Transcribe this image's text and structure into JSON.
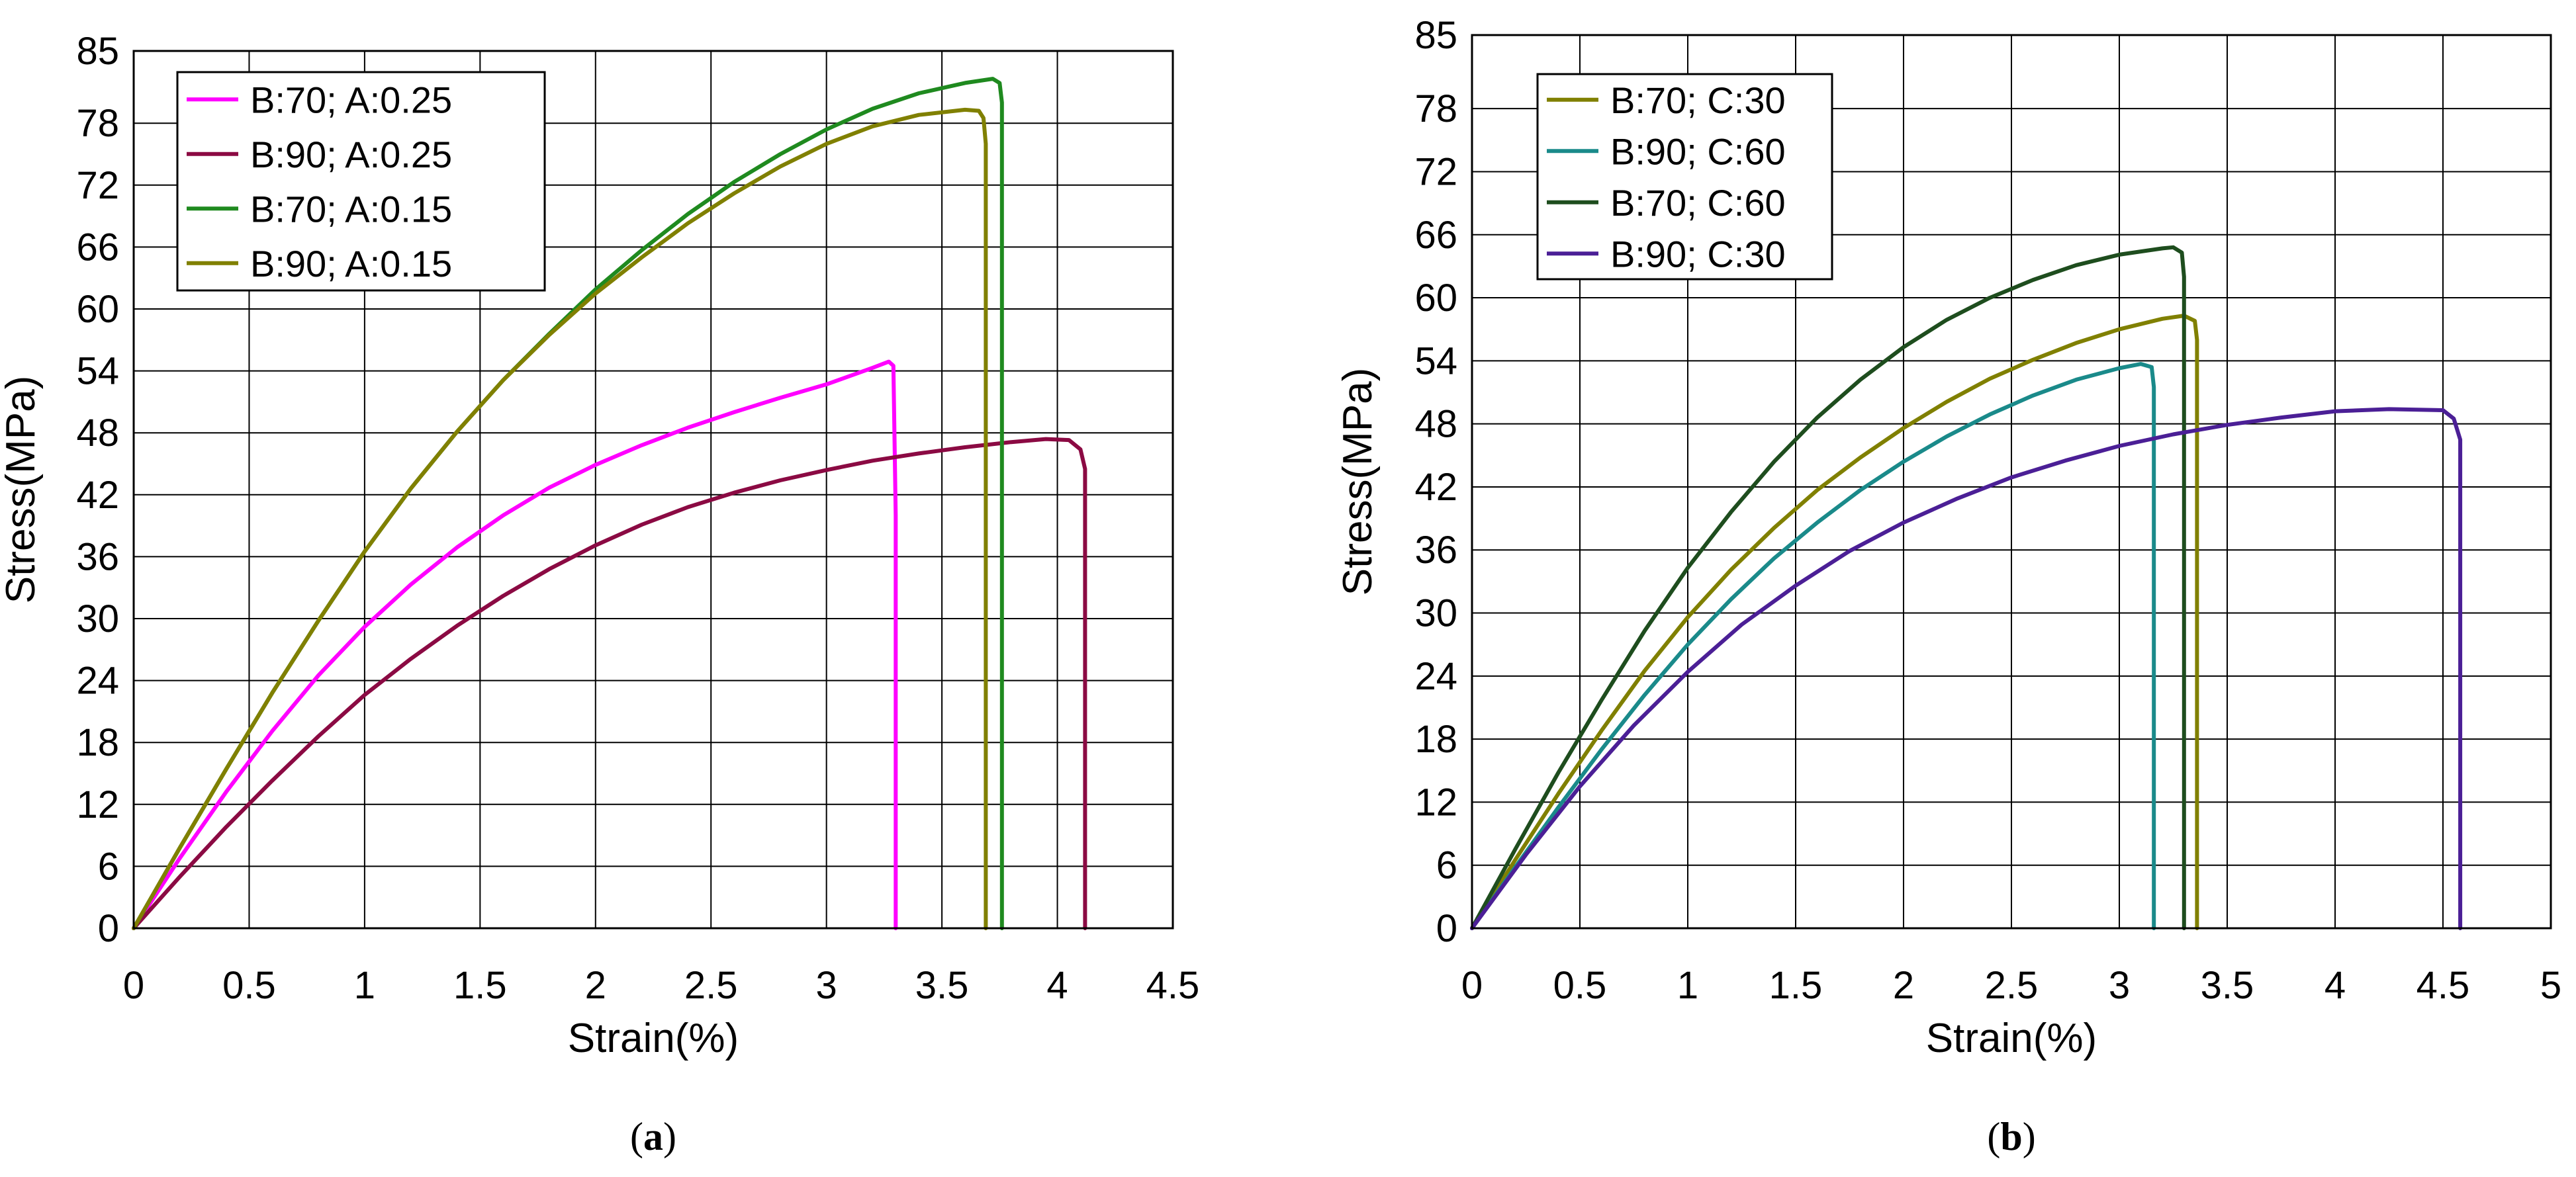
{
  "chart_data": [
    {
      "type": "line",
      "panel_label": "(a)",
      "panel_label_letter": "a",
      "xlabel": "Strain(%)",
      "ylabel": "Stress(MPa)",
      "xlim": [
        0,
        4.5
      ],
      "ylim": [
        0,
        85
      ],
      "xticks": [
        0,
        0.5,
        1,
        1.5,
        2,
        2.5,
        3,
        3.5,
        4,
        4.5
      ],
      "xtick_labels": [
        "0",
        "0.5",
        "1",
        "1.5",
        "2",
        "2.5",
        "3",
        "3.5",
        "4",
        "4.5"
      ],
      "yticks": [
        0,
        6,
        12,
        18,
        24,
        30,
        36,
        42,
        48,
        54,
        60,
        66,
        72,
        78,
        85
      ],
      "ytick_labels": [
        "0",
        "6",
        "12",
        "18",
        "24",
        "30",
        "36",
        "42",
        "48",
        "54",
        "60",
        "66",
        "72",
        "78",
        "85"
      ],
      "grid": true,
      "legend_position": "top-left",
      "series": [
        {
          "name": "B:70; A:0.25",
          "color": "#ff00ff",
          "x": [
            0,
            0.2,
            0.4,
            0.6,
            0.8,
            1.0,
            1.2,
            1.4,
            1.6,
            1.8,
            2.0,
            2.2,
            2.4,
            2.6,
            2.8,
            3.0,
            3.2,
            3.27,
            3.29,
            3.3,
            3.3
          ],
          "y": [
            0,
            6.8,
            13.2,
            19.1,
            24.5,
            29.2,
            33.3,
            36.9,
            40.0,
            42.7,
            44.9,
            46.8,
            48.5,
            50.0,
            51.4,
            52.7,
            54.3,
            54.9,
            54.5,
            40.0,
            0
          ]
        },
        {
          "name": "B:90; A:0.25",
          "color": "#8b0a43",
          "x": [
            0,
            0.2,
            0.4,
            0.6,
            0.8,
            1.0,
            1.2,
            1.4,
            1.6,
            1.8,
            2.0,
            2.2,
            2.4,
            2.6,
            2.8,
            3.0,
            3.2,
            3.4,
            3.6,
            3.8,
            3.95,
            4.05,
            4.1,
            4.12,
            4.12
          ],
          "y": [
            0,
            5.0,
            9.8,
            14.3,
            18.6,
            22.6,
            26.1,
            29.3,
            32.2,
            34.8,
            37.1,
            39.1,
            40.8,
            42.2,
            43.4,
            44.4,
            45.3,
            46.0,
            46.6,
            47.1,
            47.4,
            47.3,
            46.4,
            44.5,
            0
          ]
        },
        {
          "name": "B:70; A:0.15",
          "color": "#1f8a1f",
          "x": [
            0,
            0.2,
            0.4,
            0.6,
            0.8,
            1.0,
            1.2,
            1.4,
            1.6,
            1.8,
            2.0,
            2.2,
            2.4,
            2.6,
            2.8,
            3.0,
            3.2,
            3.4,
            3.6,
            3.72,
            3.75,
            3.76,
            3.76
          ],
          "y": [
            0,
            7.8,
            15.4,
            22.8,
            29.8,
            36.5,
            42.6,
            48.1,
            53.1,
            57.6,
            61.9,
            65.7,
            69.2,
            72.3,
            75.0,
            77.4,
            79.4,
            80.9,
            81.9,
            82.3,
            81.9,
            80.0,
            0
          ]
        },
        {
          "name": "B:90; A:0.15",
          "color": "#808000",
          "x": [
            0,
            0.2,
            0.4,
            0.6,
            0.8,
            1.0,
            1.2,
            1.4,
            1.6,
            1.8,
            2.0,
            2.2,
            2.4,
            2.6,
            2.8,
            3.0,
            3.2,
            3.4,
            3.6,
            3.66,
            3.68,
            3.69,
            3.69
          ],
          "y": [
            0,
            7.8,
            15.4,
            22.8,
            29.8,
            36.5,
            42.6,
            48.1,
            53.1,
            57.5,
            61.5,
            65.0,
            68.3,
            71.2,
            73.8,
            76.0,
            77.7,
            78.8,
            79.3,
            79.2,
            78.5,
            76.0,
            0
          ]
        }
      ]
    },
    {
      "type": "line",
      "panel_label": "(b)",
      "panel_label_letter": "b",
      "xlabel": "Strain(%)",
      "ylabel": "Stress(MPa)",
      "xlim": [
        0,
        5
      ],
      "ylim": [
        0,
        85
      ],
      "xticks": [
        0,
        0.5,
        1,
        1.5,
        2,
        2.5,
        3,
        3.5,
        4,
        4.5,
        5
      ],
      "xtick_labels": [
        "0",
        "0.5",
        "1",
        "1.5",
        "2",
        "2.5",
        "3",
        "3.5",
        "4",
        "4.5",
        "5"
      ],
      "yticks": [
        0,
        6,
        12,
        18,
        24,
        30,
        36,
        42,
        48,
        54,
        60,
        66,
        72,
        78,
        85
      ],
      "ytick_labels": [
        "0",
        "6",
        "12",
        "18",
        "24",
        "30",
        "36",
        "42",
        "48",
        "54",
        "60",
        "66",
        "72",
        "78",
        "85"
      ],
      "grid": true,
      "legend_position": "top-left",
      "series": [
        {
          "name": "B:70; C:30",
          "color": "#808000",
          "x": [
            0,
            0.2,
            0.4,
            0.6,
            0.8,
            1.0,
            1.2,
            1.4,
            1.6,
            1.8,
            2.0,
            2.2,
            2.4,
            2.6,
            2.8,
            3.0,
            3.2,
            3.3,
            3.35,
            3.36,
            3.36
          ],
          "y": [
            0,
            6.5,
            12.8,
            18.8,
            24.5,
            29.6,
            34.1,
            38.1,
            41.7,
            44.8,
            47.6,
            50.1,
            52.3,
            54.1,
            55.7,
            57.0,
            58.0,
            58.3,
            57.8,
            56.0,
            0
          ]
        },
        {
          "name": "B:90; C:60",
          "color": "#1a8a8a",
          "x": [
            0,
            0.2,
            0.4,
            0.6,
            0.8,
            1.0,
            1.2,
            1.4,
            1.6,
            1.8,
            2.0,
            2.2,
            2.4,
            2.6,
            2.8,
            3.0,
            3.1,
            3.15,
            3.16,
            3.16
          ],
          "y": [
            0,
            5.8,
            11.5,
            17.0,
            22.2,
            27.0,
            31.3,
            35.2,
            38.6,
            41.7,
            44.4,
            46.8,
            48.9,
            50.7,
            52.2,
            53.3,
            53.7,
            53.4,
            51.5,
            0
          ]
        },
        {
          "name": "B:70; C:60",
          "color": "#1e4d1e",
          "x": [
            0,
            0.2,
            0.4,
            0.6,
            0.8,
            1.0,
            1.2,
            1.4,
            1.6,
            1.8,
            2.0,
            2.2,
            2.4,
            2.6,
            2.8,
            3.0,
            3.2,
            3.25,
            3.29,
            3.3,
            3.3
          ],
          "y": [
            0,
            7.5,
            14.8,
            21.7,
            28.3,
            34.3,
            39.6,
            44.4,
            48.6,
            52.2,
            55.3,
            57.9,
            60.0,
            61.7,
            63.1,
            64.1,
            64.7,
            64.8,
            64.3,
            62.0,
            0
          ]
        },
        {
          "name": "B:90; C:30",
          "color": "#4b1f96",
          "x": [
            0,
            0.25,
            0.5,
            0.75,
            1.0,
            1.25,
            1.5,
            1.75,
            2.0,
            2.25,
            2.5,
            2.75,
            3.0,
            3.25,
            3.5,
            3.75,
            4.0,
            4.25,
            4.5,
            4.55,
            4.58,
            4.58
          ],
          "y": [
            0,
            7.0,
            13.5,
            19.3,
            24.4,
            28.9,
            32.6,
            35.9,
            38.6,
            40.9,
            42.9,
            44.5,
            45.9,
            47.0,
            47.9,
            48.6,
            49.2,
            49.4,
            49.3,
            48.5,
            46.5,
            0
          ]
        }
      ]
    }
  ]
}
